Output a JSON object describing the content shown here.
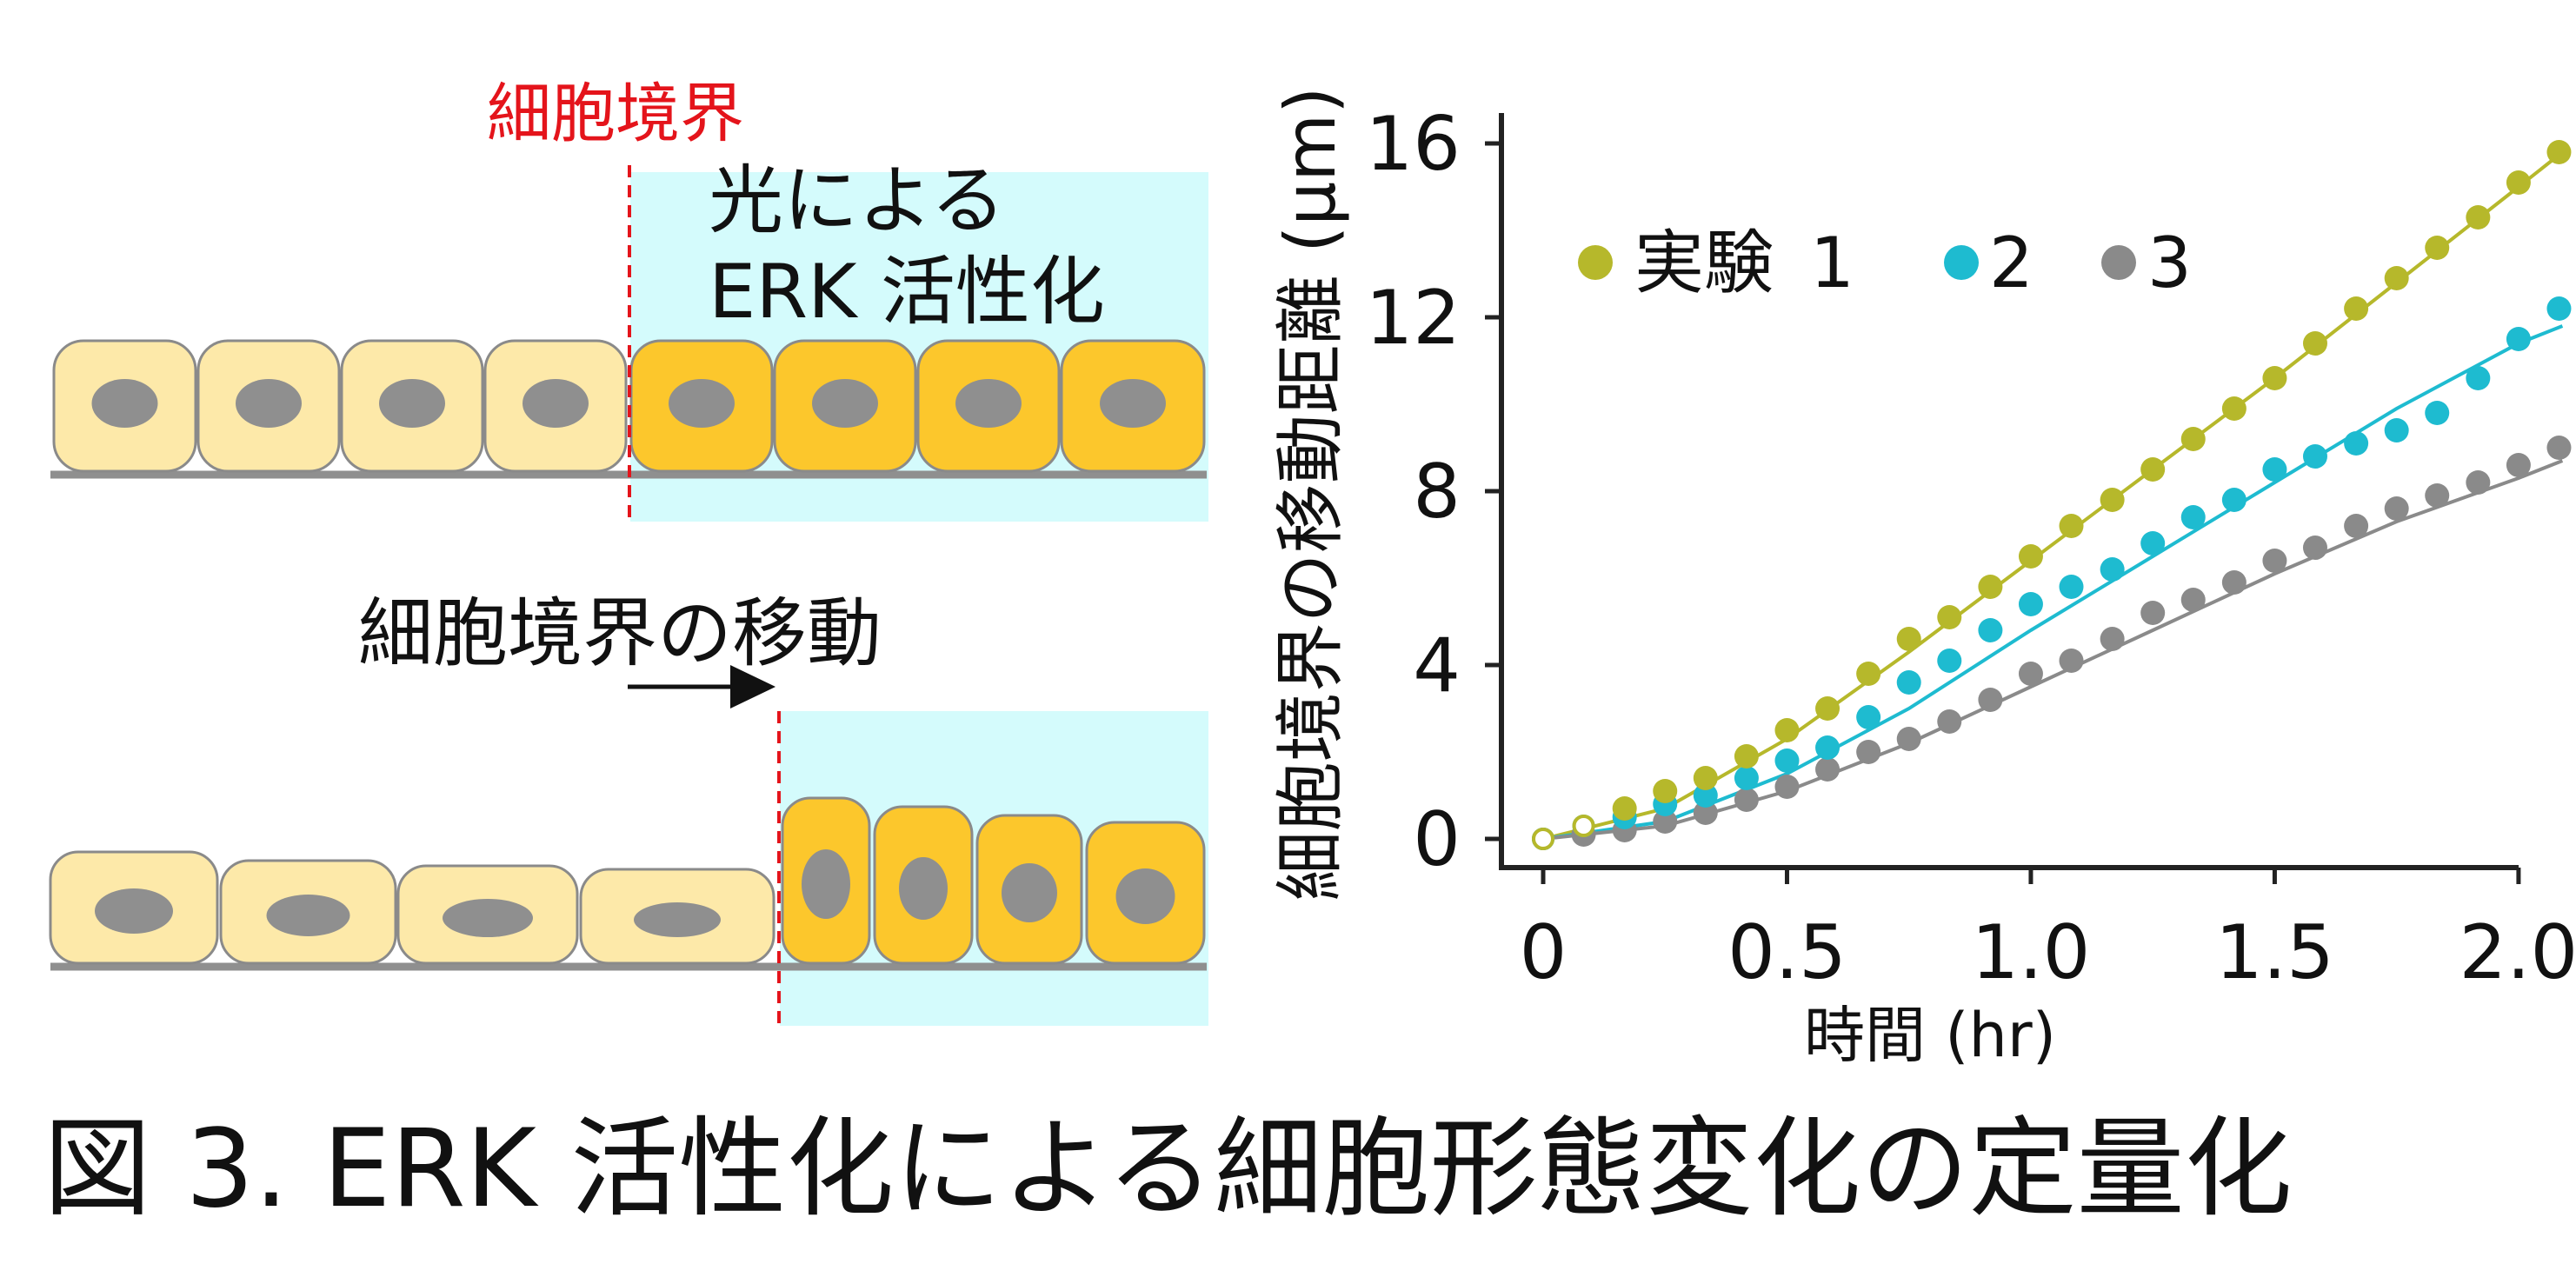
{
  "diagram": {
    "boundary_label": "細胞境界",
    "activation_label_line1": "光による",
    "activation_label_line2": "ERK 活性化",
    "movement_label": "細胞境界の移動"
  },
  "colors": {
    "cell_light": "#fde9a9",
    "cell_active": "#fcc72c",
    "nucleus": "#8f8f8f",
    "light_region": "#d4fbfc",
    "boundary_line": "#e4141b",
    "series_1": "#b6b82b",
    "series_2": "#1ebbd0",
    "series_3": "#8a8a8a",
    "axis": "#222222"
  },
  "chart_data": {
    "type": "scatter",
    "xlabel": "時間 (hr)",
    "ylabel": "細胞境界の移動距離 (µm)",
    "xlim": [
      0,
      2.1
    ],
    "ylim": [
      0,
      16
    ],
    "xticks": [
      "0",
      "0.5",
      "1.0",
      "1.5",
      "2.0"
    ],
    "yticks": [
      "0",
      "4",
      "8",
      "12",
      "16"
    ],
    "legend_position": "top-left",
    "legend_prefix": "実験",
    "x": [
      0.0,
      0.083,
      0.167,
      0.25,
      0.333,
      0.417,
      0.5,
      0.583,
      0.667,
      0.75,
      0.833,
      0.917,
      1.0,
      1.083,
      1.167,
      1.25,
      1.333,
      1.417,
      1.5,
      1.583,
      1.667,
      1.75,
      1.833,
      1.917,
      2.0,
      2.083
    ],
    "series": [
      {
        "name": "1",
        "color": "#b6b82b",
        "values": [
          0.0,
          0.3,
          0.7,
          1.1,
          1.4,
          1.9,
          2.5,
          3.0,
          3.8,
          4.6,
          5.1,
          5.8,
          6.5,
          7.2,
          7.8,
          8.5,
          9.2,
          9.9,
          10.6,
          11.4,
          12.2,
          12.9,
          13.6,
          14.3,
          15.1,
          15.8
        ],
        "fit": [
          [
            0,
            0
          ],
          [
            0.25,
            0.7
          ],
          [
            0.5,
            2.3
          ],
          [
            0.75,
            4.3
          ],
          [
            1.0,
            6.4
          ],
          [
            1.25,
            8.5
          ],
          [
            1.5,
            10.6
          ],
          [
            1.75,
            12.8
          ],
          [
            2.0,
            15.0
          ],
          [
            2.09,
            15.8
          ]
        ]
      },
      {
        "name": "2",
        "color": "#1ebbd0",
        "values": [
          0.0,
          0.3,
          0.5,
          0.8,
          1.0,
          1.4,
          1.8,
          2.1,
          2.8,
          3.6,
          4.1,
          4.8,
          5.4,
          5.8,
          6.2,
          6.8,
          7.4,
          7.8,
          8.5,
          8.8,
          9.1,
          9.4,
          9.8,
          10.6,
          11.5,
          12.2
        ],
        "fit": [
          [
            0,
            0
          ],
          [
            0.25,
            0.4
          ],
          [
            0.5,
            1.5
          ],
          [
            0.75,
            3.0
          ],
          [
            1.0,
            4.8
          ],
          [
            1.25,
            6.5
          ],
          [
            1.5,
            8.2
          ],
          [
            1.75,
            9.9
          ],
          [
            2.0,
            11.4
          ],
          [
            2.09,
            11.8
          ]
        ]
      },
      {
        "name": "3",
        "color": "#8a8a8a",
        "values": [
          0.0,
          0.1,
          0.2,
          0.4,
          0.6,
          0.9,
          1.2,
          1.6,
          2.0,
          2.3,
          2.7,
          3.2,
          3.8,
          4.1,
          4.6,
          5.2,
          5.5,
          5.9,
          6.4,
          6.7,
          7.2,
          7.6,
          7.9,
          8.2,
          8.6,
          9.0
        ],
        "fit": [
          [
            0,
            0
          ],
          [
            0.25,
            0.3
          ],
          [
            0.5,
            1.1
          ],
          [
            0.75,
            2.2
          ],
          [
            1.0,
            3.5
          ],
          [
            1.25,
            4.8
          ],
          [
            1.5,
            6.1
          ],
          [
            1.75,
            7.3
          ],
          [
            2.0,
            8.3
          ],
          [
            2.09,
            8.7
          ]
        ]
      }
    ]
  },
  "caption": "図 3. ERK 活性化による細胞形態変化の定量化"
}
